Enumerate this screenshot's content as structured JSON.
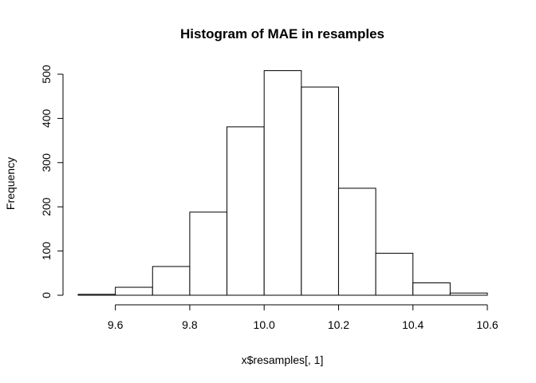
{
  "chart_data": {
    "type": "bar",
    "subtype": "histogram",
    "title": "Histogram of MAE in resamples",
    "xlabel": "x$resamples[, 1]",
    "ylabel": "Frequency",
    "bin_edges": [
      9.5,
      9.6,
      9.7,
      9.8,
      9.9,
      10.0,
      10.1,
      10.2,
      10.3,
      10.4,
      10.5,
      10.6
    ],
    "values": [
      2,
      18,
      65,
      188,
      381,
      508,
      471,
      242,
      95,
      28,
      5
    ],
    "xlim": [
      9.5,
      10.6
    ],
    "ylim": [
      0,
      500
    ],
    "x_ticks": [
      {
        "value": 9.6,
        "label": "9.6"
      },
      {
        "value": 9.8,
        "label": "9.8"
      },
      {
        "value": 10.0,
        "label": "10.0"
      },
      {
        "value": 10.2,
        "label": "10.2"
      },
      {
        "value": 10.4,
        "label": "10.4"
      },
      {
        "value": 10.6,
        "label": "10.6"
      }
    ],
    "y_ticks": [
      {
        "value": 0,
        "label": "0"
      },
      {
        "value": 100,
        "label": "100"
      },
      {
        "value": 200,
        "label": "200"
      },
      {
        "value": 300,
        "label": "300"
      },
      {
        "value": 400,
        "label": "400"
      },
      {
        "value": 500,
        "label": "500"
      }
    ],
    "grid": false,
    "legend": "none",
    "colors": {
      "bar_fill": "#ffffff",
      "bar_stroke": "#000000",
      "axis": "#000000"
    }
  }
}
